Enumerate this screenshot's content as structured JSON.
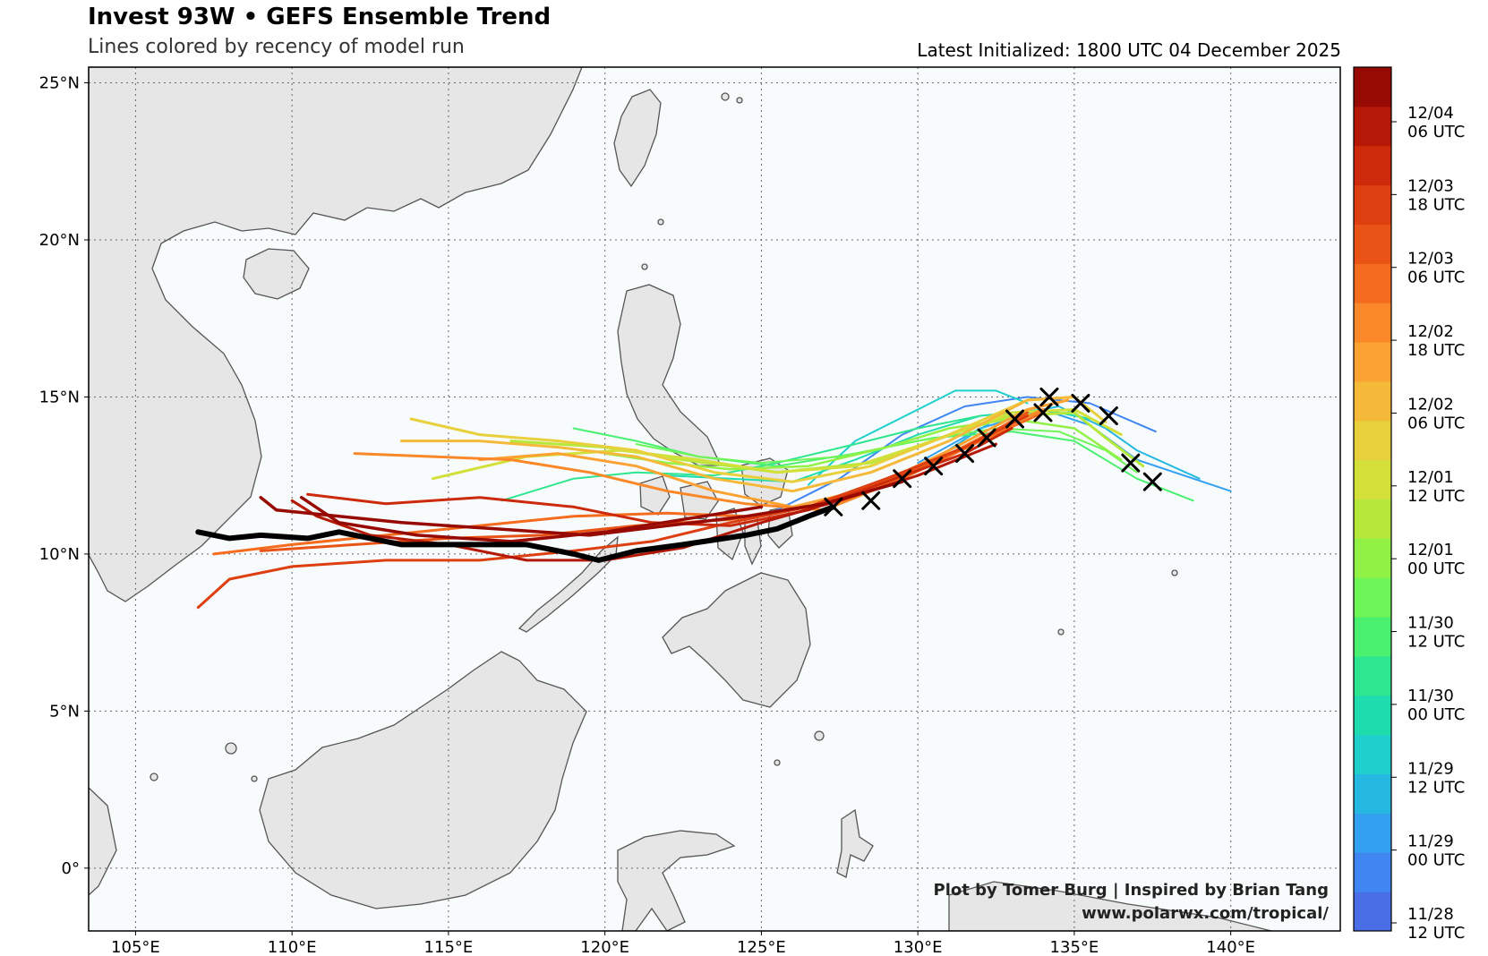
{
  "title": "Invest 93W • GEFS Ensemble Trend",
  "subtitle": "Lines colored by recency of model run",
  "initialized": "Latest Initialized: 1800 UTC 04 December 2025",
  "credit_line1": "Plot by Tomer Burg | Inspired by Brian Tang",
  "credit_line2": "www.polarwx.com/tropical/",
  "map": {
    "lon_range": [
      103.5,
      143.5
    ],
    "lat_range": [
      -2.0,
      25.5
    ],
    "lon_ticks": [
      105,
      110,
      115,
      120,
      125,
      130,
      135,
      140
    ],
    "lon_tick_labels": [
      "105°E",
      "110°E",
      "115°E",
      "120°E",
      "125°E",
      "130°E",
      "135°E",
      "140°E"
    ],
    "lat_ticks": [
      0,
      5,
      10,
      15,
      20,
      25
    ],
    "lat_tick_labels": [
      "0°",
      "5°N",
      "10°N",
      "15°N",
      "20°N",
      "25°N"
    ],
    "ocean_color": "#f8fbfc",
    "land_color": "#e6e6e6",
    "grid": true
  },
  "colorbar": {
    "colors": [
      "#4a6ee6",
      "#3f86f2",
      "#34a0f0",
      "#27b8e2",
      "#1fcfcb",
      "#1fdcaf",
      "#2ee690",
      "#4af070",
      "#6ef557",
      "#92f145",
      "#b5e83a",
      "#d3e03a",
      "#e8cf3c",
      "#f5b93a",
      "#fba233",
      "#fa8828",
      "#f56c1e",
      "#e95416",
      "#dd3f10",
      "#cc2a0a",
      "#b41806",
      "#960a03"
    ],
    "labels": [
      {
        "line1": "11/28",
        "line2": "12 UTC"
      },
      {
        "line1": "11/29",
        "line2": "00 UTC"
      },
      {
        "line1": "11/29",
        "line2": "12 UTC"
      },
      {
        "line1": "11/30",
        "line2": "00 UTC"
      },
      {
        "line1": "11/30",
        "line2": "12 UTC"
      },
      {
        "line1": "12/01",
        "line2": "00 UTC"
      },
      {
        "line1": "12/01",
        "line2": "12 UTC"
      },
      {
        "line1": "12/02",
        "line2": "06 UTC"
      },
      {
        "line1": "12/02",
        "line2": "18 UTC"
      },
      {
        "line1": "12/03",
        "line2": "06 UTC"
      },
      {
        "line1": "12/03",
        "line2": "18 UTC"
      },
      {
        "line1": "12/04",
        "line2": "06 UTC"
      }
    ]
  },
  "chart_data": {
    "type": "line",
    "x_axis": "longitude (°E)",
    "y_axis": "latitude (°N)",
    "tracks": [
      {
        "color": "#3f86f2",
        "width": 2,
        "points": [
          [
            125.3,
            11.3
          ],
          [
            127.5,
            12.4
          ],
          [
            129.5,
            13.8
          ],
          [
            131.5,
            14.7
          ],
          [
            133.5,
            15.0
          ],
          [
            135.5,
            14.8
          ],
          [
            137.6,
            13.9
          ]
        ]
      },
      {
        "color": "#34a0f0",
        "width": 2,
        "points": [
          [
            130.0,
            12.9
          ],
          [
            132.0,
            14.0
          ],
          [
            134.0,
            14.6
          ],
          [
            135.5,
            14.1
          ],
          [
            137.0,
            13.0
          ],
          [
            140.0,
            12.0
          ]
        ]
      },
      {
        "color": "#27b8e2",
        "width": 2,
        "points": [
          [
            130.5,
            13.0
          ],
          [
            132.5,
            14.3
          ],
          [
            134.5,
            14.7
          ],
          [
            136.0,
            14.0
          ],
          [
            137.0,
            13.3
          ],
          [
            139.0,
            12.4
          ]
        ]
      },
      {
        "color": "#1fcfcb",
        "width": 2,
        "points": [
          [
            126.5,
            12.2
          ],
          [
            128.0,
            13.6
          ],
          [
            130.0,
            14.6
          ],
          [
            131.2,
            15.2
          ],
          [
            132.5,
            15.2
          ],
          [
            133.5,
            14.8
          ]
        ]
      },
      {
        "color": "#1fdcaf",
        "width": 2,
        "points": [
          [
            122.0,
            12.5
          ],
          [
            124.0,
            12.4
          ],
          [
            126.0,
            12.3
          ],
          [
            128.0,
            13.0
          ],
          [
            130.0,
            13.8
          ],
          [
            132.0,
            14.4
          ],
          [
            134.0,
            14.6
          ],
          [
            135.5,
            14.3
          ]
        ]
      },
      {
        "color": "#2ee690",
        "width": 2,
        "points": [
          [
            116.7,
            11.7
          ],
          [
            119.0,
            12.4
          ],
          [
            121.0,
            12.6
          ],
          [
            123.5,
            12.5
          ],
          [
            125.5,
            12.9
          ],
          [
            128.0,
            13.5
          ],
          [
            130.0,
            14.0
          ],
          [
            132.0,
            14.4
          ]
        ]
      },
      {
        "color": "#4af070",
        "width": 2,
        "points": [
          [
            119.0,
            14.0
          ],
          [
            121.0,
            13.6
          ],
          [
            123.0,
            13.1
          ],
          [
            125.5,
            12.8
          ],
          [
            128.0,
            13.2
          ],
          [
            130.5,
            13.7
          ],
          [
            133.0,
            13.9
          ],
          [
            135.0,
            13.6
          ],
          [
            137.0,
            12.4
          ],
          [
            138.8,
            11.7
          ]
        ]
      },
      {
        "color": "#6ef557",
        "width": 2,
        "points": [
          [
            121.0,
            13.5
          ],
          [
            123.0,
            13.1
          ],
          [
            125.0,
            12.9
          ],
          [
            127.5,
            13.1
          ],
          [
            130.0,
            13.6
          ],
          [
            132.5,
            14.0
          ],
          [
            134.5,
            13.9
          ],
          [
            136.0,
            13.3
          ],
          [
            137.0,
            12.6
          ]
        ]
      },
      {
        "color": "#92f145",
        "width": 2.5,
        "points": [
          [
            120.0,
            13.2
          ],
          [
            122.0,
            12.9
          ],
          [
            124.0,
            12.7
          ],
          [
            126.5,
            12.8
          ],
          [
            129.0,
            13.4
          ],
          [
            131.0,
            14.0
          ],
          [
            133.0,
            14.3
          ],
          [
            135.0,
            14.0
          ],
          [
            136.5,
            13.0
          ]
        ]
      },
      {
        "color": "#b5e83a",
        "width": 3,
        "points": [
          [
            117.0,
            13.6
          ],
          [
            120.0,
            13.4
          ],
          [
            122.5,
            13.0
          ],
          [
            125.5,
            12.6
          ],
          [
            128.5,
            12.9
          ],
          [
            131.0,
            13.8
          ],
          [
            133.0,
            14.4
          ],
          [
            135.0,
            14.5
          ],
          [
            136.0,
            13.7
          ],
          [
            137.2,
            12.8
          ]
        ]
      },
      {
        "color": "#d3e03a",
        "width": 3,
        "points": [
          [
            114.5,
            12.4
          ],
          [
            117.5,
            13.1
          ],
          [
            120.5,
            13.3
          ],
          [
            123.0,
            13.0
          ],
          [
            125.5,
            12.6
          ],
          [
            128.0,
            12.8
          ],
          [
            130.5,
            13.6
          ],
          [
            133.0,
            14.5
          ],
          [
            135.0,
            14.6
          ],
          [
            136.5,
            13.8
          ]
        ]
      },
      {
        "color": "#e8cf3c",
        "width": 3,
        "points": [
          [
            113.8,
            14.3
          ],
          [
            116.0,
            13.8
          ],
          [
            118.5,
            13.6
          ],
          [
            121.0,
            13.3
          ],
          [
            123.5,
            12.6
          ],
          [
            126.0,
            12.3
          ],
          [
            128.5,
            12.8
          ],
          [
            131.0,
            13.8
          ],
          [
            133.5,
            14.9
          ],
          [
            135.0,
            15.0
          ],
          [
            136.0,
            14.2
          ]
        ]
      },
      {
        "color": "#f5b93a",
        "width": 3,
        "points": [
          [
            113.5,
            13.6
          ],
          [
            116.0,
            13.6
          ],
          [
            118.5,
            13.4
          ],
          [
            121.0,
            13.1
          ],
          [
            123.5,
            12.4
          ],
          [
            126.0,
            12.0
          ],
          [
            128.5,
            12.6
          ],
          [
            131.0,
            13.6
          ],
          [
            133.5,
            14.9
          ],
          [
            135.0,
            15.0
          ]
        ]
      },
      {
        "color": "#fba233",
        "width": 3,
        "points": [
          [
            116.0,
            13.0
          ],
          [
            118.5,
            13.2
          ],
          [
            121.0,
            12.8
          ],
          [
            123.5,
            12.0
          ],
          [
            126.0,
            11.5
          ],
          [
            128.5,
            12.1
          ],
          [
            131.0,
            13.3
          ],
          [
            133.5,
            14.6
          ],
          [
            134.8,
            14.9
          ]
        ]
      },
      {
        "color": "#fa8828",
        "width": 3,
        "points": [
          [
            112.0,
            13.2
          ],
          [
            114.5,
            13.1
          ],
          [
            117.0,
            13.0
          ],
          [
            119.5,
            12.6
          ],
          [
            122.0,
            12.0
          ],
          [
            124.5,
            11.6
          ],
          [
            127.0,
            11.4
          ],
          [
            129.5,
            12.4
          ],
          [
            132.0,
            13.7
          ],
          [
            134.0,
            14.6
          ]
        ]
      },
      {
        "color": "#f56c1e",
        "width": 3,
        "points": [
          [
            107.5,
            10.0
          ],
          [
            110.0,
            10.3
          ],
          [
            113.0,
            10.6
          ],
          [
            116.0,
            10.9
          ],
          [
            119.0,
            11.2
          ],
          [
            122.0,
            11.3
          ],
          [
            124.5,
            11.2
          ],
          [
            127.0,
            11.6
          ],
          [
            129.5,
            12.4
          ],
          [
            132.0,
            13.6
          ],
          [
            134.0,
            14.5
          ]
        ]
      },
      {
        "color": "#e95416",
        "width": 3,
        "points": [
          [
            109.0,
            10.1
          ],
          [
            112.0,
            10.3
          ],
          [
            115.0,
            10.5
          ],
          [
            118.0,
            10.6
          ],
          [
            121.0,
            10.9
          ],
          [
            124.0,
            11.1
          ],
          [
            126.5,
            11.5
          ],
          [
            129.0,
            12.3
          ],
          [
            131.5,
            13.4
          ],
          [
            133.5,
            14.5
          ]
        ]
      },
      {
        "color": "#dd3f10",
        "width": 3,
        "points": [
          [
            107.0,
            8.3
          ],
          [
            108.0,
            9.2
          ],
          [
            110.0,
            9.6
          ],
          [
            113.0,
            9.8
          ],
          [
            116.0,
            9.8
          ],
          [
            119.0,
            10.1
          ],
          [
            121.5,
            10.4
          ],
          [
            124.0,
            11.0
          ],
          [
            126.5,
            11.5
          ],
          [
            129.0,
            12.4
          ],
          [
            131.5,
            13.4
          ],
          [
            133.5,
            14.4
          ]
        ]
      },
      {
        "color": "#cc2a0a",
        "width": 3,
        "points": [
          [
            110.5,
            11.9
          ],
          [
            113.0,
            11.6
          ],
          [
            116.0,
            11.8
          ],
          [
            119.0,
            11.5
          ],
          [
            121.5,
            11.0
          ],
          [
            124.0,
            10.9
          ],
          [
            126.5,
            11.4
          ],
          [
            129.0,
            12.3
          ],
          [
            131.5,
            13.2
          ],
          [
            133.0,
            14.0
          ]
        ]
      },
      {
        "color": "#b41806",
        "width": 3,
        "points": [
          [
            110.0,
            11.7
          ],
          [
            110.8,
            11.2
          ],
          [
            112.5,
            10.6
          ],
          [
            115.0,
            10.3
          ],
          [
            117.5,
            9.8
          ],
          [
            120.0,
            9.8
          ],
          [
            122.5,
            10.2
          ],
          [
            125.0,
            11.0
          ],
          [
            127.5,
            11.7
          ],
          [
            130.0,
            12.5
          ],
          [
            132.5,
            13.5
          ]
        ]
      },
      {
        "color": "#960a03",
        "width": 3.5,
        "points": [
          [
            109.0,
            11.8
          ],
          [
            109.5,
            11.4
          ],
          [
            111.5,
            11.2
          ],
          [
            113.5,
            11.0
          ],
          [
            116.5,
            10.8
          ],
          [
            119.5,
            10.6
          ],
          [
            122.0,
            10.9
          ],
          [
            124.5,
            11.2
          ],
          [
            127.0,
            11.6
          ],
          [
            129.5,
            12.3
          ]
        ]
      },
      {
        "color": "#960a03",
        "width": 3.5,
        "points": [
          [
            110.3,
            11.8
          ],
          [
            111.5,
            11.0
          ],
          [
            114.0,
            10.6
          ],
          [
            117.0,
            10.4
          ],
          [
            120.0,
            10.7
          ],
          [
            122.5,
            11.1
          ],
          [
            125.0,
            11.5
          ]
        ]
      },
      {
        "color": "#000000",
        "width": 6,
        "points": [
          [
            107.0,
            10.7
          ],
          [
            108.0,
            10.5
          ],
          [
            109.0,
            10.6
          ],
          [
            110.5,
            10.5
          ],
          [
            111.5,
            10.7
          ],
          [
            113.5,
            10.3
          ],
          [
            115.5,
            10.3
          ],
          [
            117.5,
            10.3
          ],
          [
            119.0,
            10.0
          ],
          [
            119.8,
            9.8
          ],
          [
            121.0,
            10.1
          ],
          [
            122.5,
            10.3
          ],
          [
            124.5,
            10.6
          ],
          [
            125.5,
            10.8
          ],
          [
            126.5,
            11.2
          ],
          [
            127.3,
            11.5
          ]
        ]
      }
    ],
    "markers": {
      "symbol": "x",
      "color": "#000000",
      "points": [
        [
          127.3,
          11.5
        ],
        [
          128.5,
          11.7
        ],
        [
          129.5,
          12.4
        ],
        [
          130.5,
          12.8
        ],
        [
          131.5,
          13.2
        ],
        [
          132.2,
          13.7
        ],
        [
          133.1,
          14.3
        ],
        [
          134.0,
          14.5
        ],
        [
          134.2,
          15.0
        ],
        [
          135.2,
          14.8
        ],
        [
          136.1,
          14.4
        ],
        [
          136.8,
          12.9
        ],
        [
          137.5,
          12.3
        ]
      ]
    }
  }
}
